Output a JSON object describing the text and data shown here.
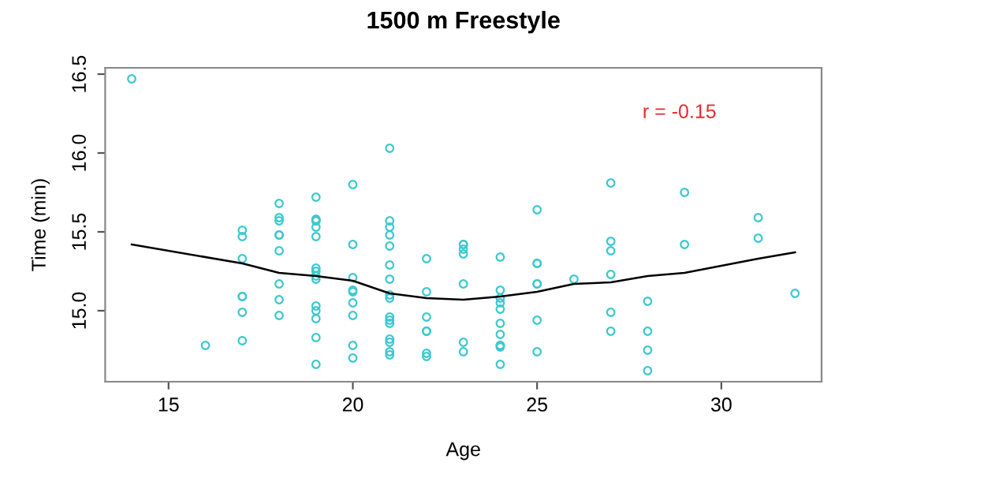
{
  "chart_data": {
    "type": "scatter",
    "title": "1500 m Freestyle",
    "xlabel": "Age",
    "ylabel": "Time (min)",
    "annotations": [
      "r = -0.15"
    ],
    "xlim": [
      13.28,
      32.72
    ],
    "ylim": [
      14.55,
      16.54
    ],
    "xticks": [
      15,
      20,
      25,
      30
    ],
    "yticks": [
      {
        "value": 15,
        "label": "15.0"
      },
      {
        "value": 15.5,
        "label": "15.5"
      },
      {
        "value": 16,
        "label": "16.0"
      },
      {
        "value": 16.5,
        "label": "16.5"
      }
    ],
    "grid": false,
    "legend": false,
    "marker": "circle",
    "series": [
      {
        "color": "#3cc8d0",
        "x": [
          14,
          16,
          17,
          17,
          17,
          17,
          17,
          17,
          17,
          18,
          18,
          18,
          18,
          18,
          18,
          18,
          18,
          18,
          19,
          19,
          19,
          19,
          19,
          19,
          19,
          19,
          19,
          19,
          19,
          19,
          19,
          19,
          19,
          20,
          20,
          20,
          20,
          20,
          20,
          20,
          20,
          20,
          21,
          21,
          21,
          21,
          21,
          21,
          21,
          21,
          21,
          21,
          21,
          21,
          21,
          21,
          21,
          21,
          22,
          22,
          22,
          22,
          22,
          22,
          22,
          23,
          23,
          23,
          23,
          23,
          23,
          23,
          24,
          24,
          24,
          24,
          24,
          24,
          24,
          24,
          24,
          24,
          24,
          25,
          25,
          25,
          25,
          25,
          25,
          25,
          26,
          27,
          27,
          27,
          27,
          27,
          27,
          28,
          28,
          28,
          28,
          29,
          29,
          31,
          31,
          32
        ],
        "values": [
          16.47,
          14.78,
          15.51,
          15.47,
          15.33,
          15.09,
          15.09,
          14.99,
          14.81,
          15.68,
          15.59,
          15.57,
          15.48,
          15.48,
          15.38,
          15.17,
          15.07,
          14.97,
          15.72,
          15.58,
          15.57,
          15.57,
          15.53,
          15.47,
          15.27,
          15.25,
          15.22,
          15.2,
          15.03,
          15.0,
          14.95,
          14.83,
          14.66,
          15.8,
          15.42,
          15.21,
          15.13,
          15.12,
          15.05,
          14.97,
          14.78,
          14.7,
          16.03,
          15.57,
          15.53,
          15.48,
          15.41,
          15.29,
          15.2,
          15.1,
          15.08,
          14.96,
          14.94,
          14.92,
          14.82,
          14.8,
          14.74,
          14.72,
          15.33,
          15.12,
          14.96,
          14.87,
          14.87,
          14.73,
          14.71,
          15.42,
          15.42,
          15.39,
          15.36,
          15.17,
          14.8,
          14.74,
          15.34,
          15.13,
          15.08,
          15.05,
          15.01,
          14.92,
          14.85,
          14.78,
          14.78,
          14.77,
          14.66,
          15.64,
          15.3,
          15.3,
          15.17,
          15.17,
          14.94,
          14.74,
          15.2,
          15.81,
          15.44,
          15.38,
          15.23,
          14.99,
          14.87,
          15.06,
          14.87,
          14.75,
          14.62,
          15.75,
          15.42,
          15.59,
          15.46,
          15.11
        ]
      },
      {
        "type": "line",
        "color": "#000000",
        "marker": "none",
        "x": [
          14,
          17,
          18,
          19,
          20,
          21,
          22,
          23,
          24,
          25,
          26,
          27,
          28,
          29,
          31,
          32
        ],
        "values": [
          15.42,
          15.3,
          15.24,
          15.22,
          15.19,
          15.11,
          15.08,
          15.07,
          15.09,
          15.12,
          15.17,
          15.18,
          15.22,
          15.24,
          15.33,
          15.37
        ]
      }
    ]
  }
}
